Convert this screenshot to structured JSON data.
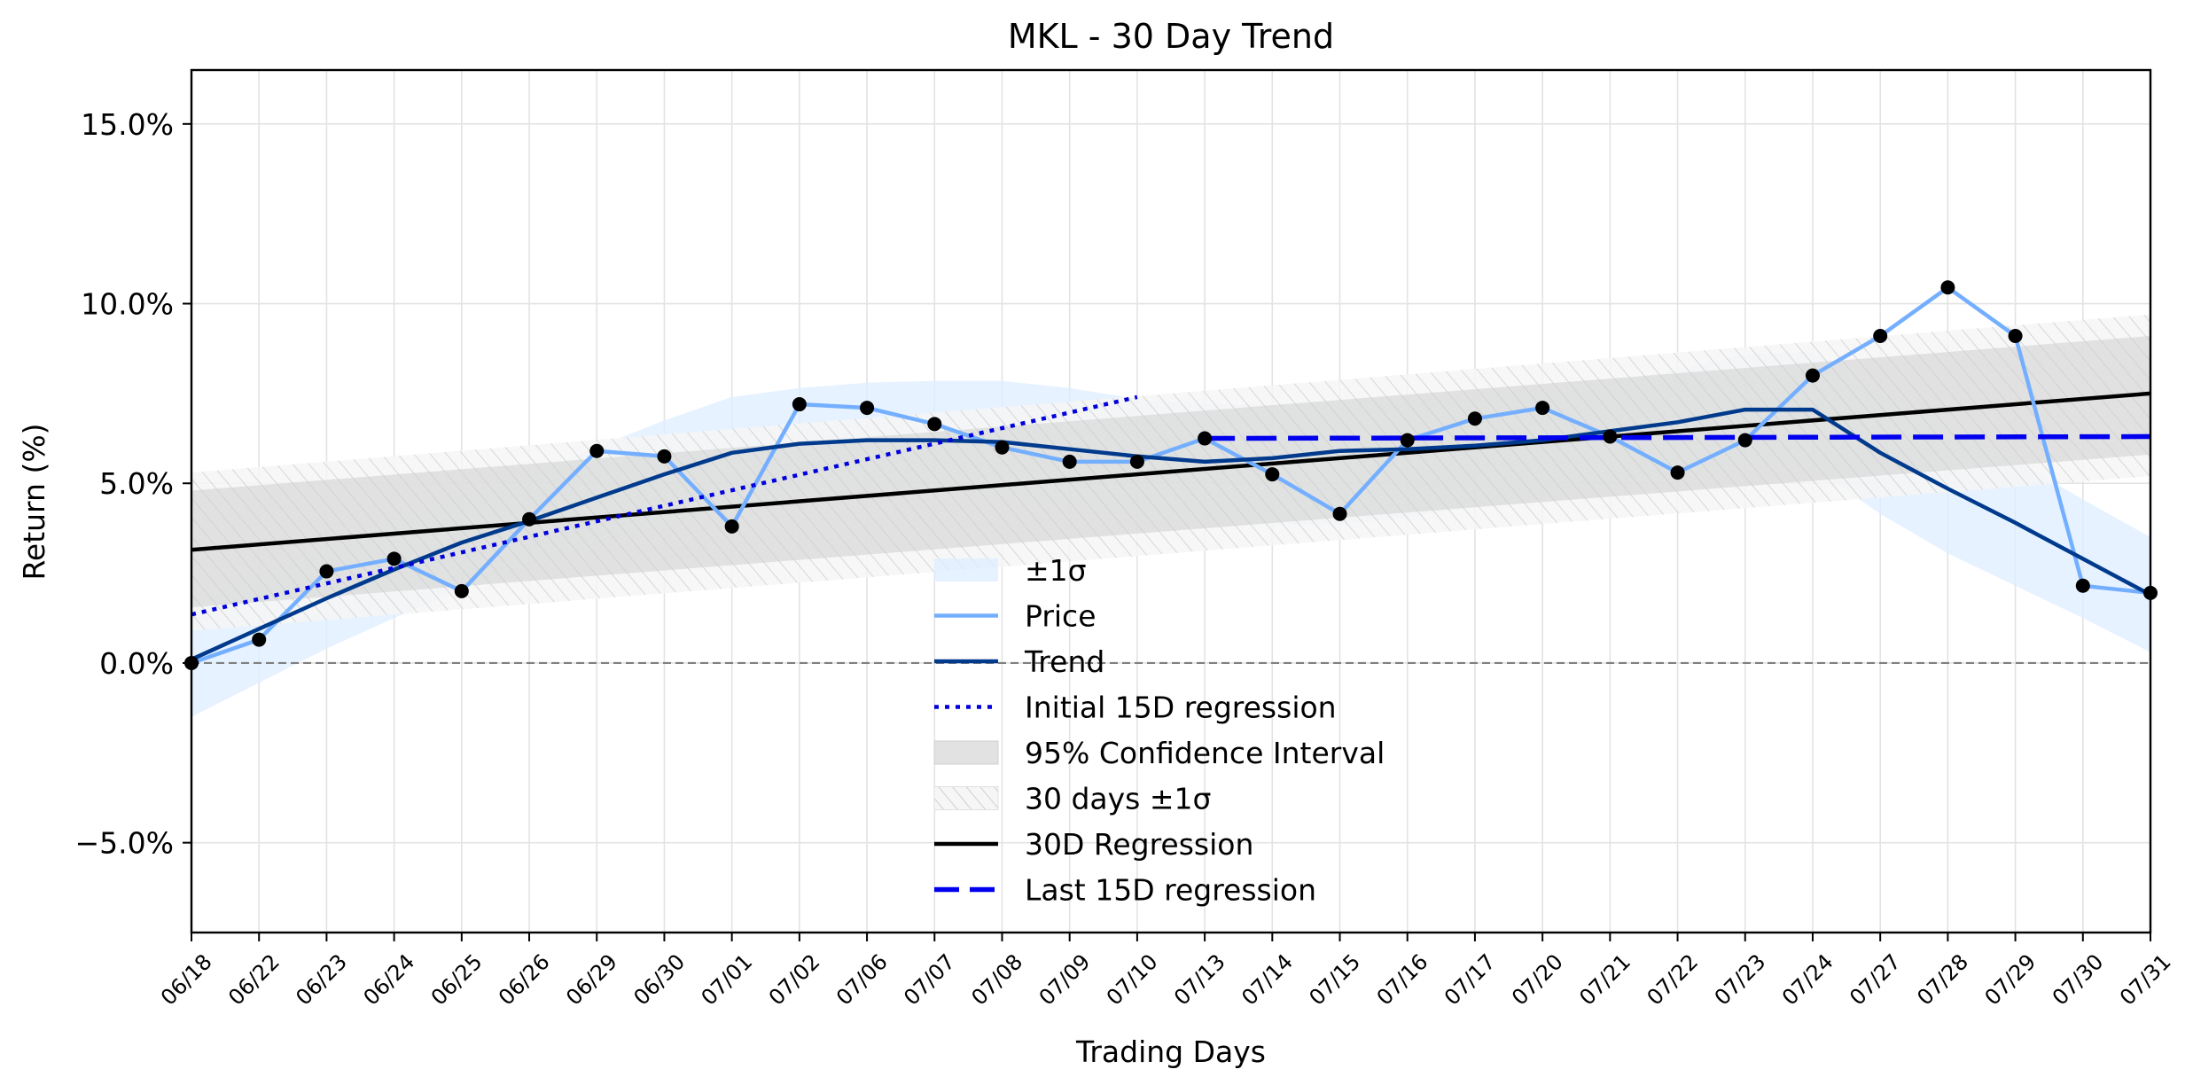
{
  "chart_data": {
    "type": "line",
    "title": "MKL - 30 Day Trend",
    "xlabel": "Trading Days",
    "ylabel": "Return (%)",
    "x": [
      "06/18",
      "06/22",
      "06/23",
      "06/24",
      "06/25",
      "06/26",
      "06/29",
      "06/30",
      "07/01",
      "07/02",
      "07/06",
      "07/07",
      "07/08",
      "07/09",
      "07/10",
      "07/13",
      "07/14",
      "07/15",
      "07/16",
      "07/17",
      "07/20",
      "07/21",
      "07/22",
      "07/23",
      "07/24",
      "07/27",
      "07/28",
      "07/29",
      "07/30",
      "07/31"
    ],
    "ylim": [
      -7.5,
      16.5
    ],
    "yticks": [
      -5.0,
      0.0,
      5.0,
      10.0,
      15.0
    ],
    "ytick_labels": [
      "−5.0%",
      "0.0%",
      "5.0%",
      "10.0%",
      "15.0%"
    ],
    "grid": true,
    "zero_line": 0.0,
    "series": [
      {
        "name": "Price",
        "color": "#74afff",
        "values": [
          0.0,
          0.65,
          2.55,
          2.9,
          2.0,
          4.0,
          5.9,
          5.75,
          3.8,
          7.2,
          7.1,
          6.65,
          6.0,
          5.6,
          5.6,
          6.25,
          5.25,
          4.15,
          6.2,
          6.8,
          7.1,
          6.3,
          5.3,
          6.2,
          8.0,
          9.1,
          10.45,
          9.1,
          2.15,
          1.95
        ]
      },
      {
        "name": "Trend",
        "color": "#003a8c",
        "values": [
          0.1,
          0.95,
          1.8,
          2.6,
          3.35,
          3.95,
          4.6,
          5.25,
          5.85,
          6.1,
          6.2,
          6.2,
          6.15,
          5.95,
          5.75,
          5.6,
          5.7,
          5.9,
          5.95,
          6.05,
          6.2,
          6.45,
          6.7,
          7.05,
          7.05,
          5.85,
          4.85,
          3.9,
          2.9,
          1.9
        ]
      }
    ],
    "sigma_band": {
      "name": "±1σ",
      "color": "#ddeeff",
      "lower": [
        -1.5,
        -0.55,
        0.4,
        1.25,
        2.05,
        2.75,
        3.3,
        3.85,
        4.3,
        4.6,
        4.85,
        4.95,
        4.65,
        4.4,
        4.1,
        3.95,
        3.85,
        3.85,
        4.05,
        4.35,
        4.65,
        4.95,
        5.25,
        5.5,
        5.45,
        4.15,
        3.05,
        2.15,
        1.25,
        0.3
      ],
      "upper": [
        1.7,
        2.45,
        3.2,
        3.95,
        4.65,
        5.25,
        6.0,
        6.75,
        7.4,
        7.65,
        7.8,
        7.85,
        7.85,
        7.65,
        7.35,
        7.2,
        7.2,
        7.3,
        7.35,
        7.4,
        7.55,
        7.85,
        8.15,
        8.6,
        8.65,
        7.55,
        6.65,
        5.65,
        4.55,
        3.5
      ]
    },
    "initial_regression": {
      "name": "Initial 15D regression",
      "color": "#0000dd",
      "x_range": [
        "06/18",
        "07/10"
      ],
      "y": [
        1.35,
        7.4
      ]
    },
    "last_regression": {
      "name": "Last 15D regression",
      "color": "#0000ee",
      "x_range": [
        "07/13",
        "07/31"
      ],
      "y": [
        6.25,
        6.3
      ]
    },
    "regression_30d": {
      "name": "30D Regression",
      "color": "#000000",
      "x_range": [
        "06/18",
        "07/31"
      ],
      "y": [
        3.15,
        7.5
      ]
    },
    "confidence_interval": {
      "name": "95% Confidence Interval",
      "color": "#d0d0d0",
      "lower": [
        1.55,
        5.8
      ],
      "upper": [
        4.8,
        9.1
      ]
    },
    "sigma_30d": {
      "name": "30 days ±1σ",
      "color": "#c8c8c8",
      "lower": [
        0.9,
        5.2
      ],
      "upper": [
        5.3,
        9.7
      ]
    },
    "legend": {
      "placement": "lower-center",
      "entries": [
        "±1σ",
        "Price",
        "Trend",
        "Initial 15D regression",
        "95% Confidence Interval",
        "30 days ±1σ",
        "30D Regression",
        "Last 15D regression"
      ]
    }
  }
}
